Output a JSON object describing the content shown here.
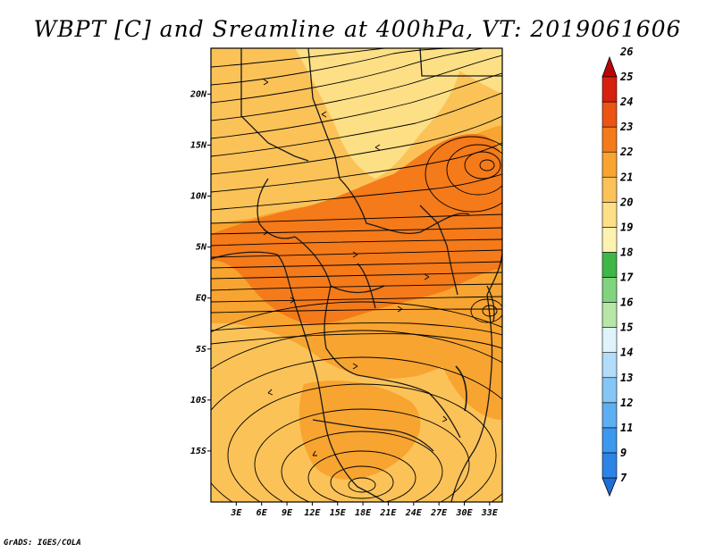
{
  "title": "WBPT [C] and Sreamline at 400hPa, VT: 2019061606",
  "credit": "GrADS: IGES/COLA",
  "map": {
    "lat_labels": [
      "20N",
      "15N",
      "10N",
      "5N",
      "EQ",
      "5S",
      "10S",
      "15S"
    ],
    "lon_labels": [
      "3E",
      "6E",
      "9E",
      "12E",
      "15E",
      "18E",
      "21E",
      "24E",
      "27E",
      "30E",
      "33E"
    ],
    "lat_range": [
      -20,
      24.5
    ],
    "lon_range": [
      0,
      34.5
    ]
  },
  "colorbar": {
    "labels": [
      "7",
      "9",
      "11",
      "12",
      "13",
      "14",
      "15",
      "16",
      "17",
      "18",
      "19",
      "20",
      "21",
      "22",
      "23",
      "24",
      "25",
      "26"
    ],
    "colors": [
      "#1e6ed6",
      "#2d84e8",
      "#3b98ee",
      "#5eaef2",
      "#86c6f6",
      "#b2dcfa",
      "#dff3fb",
      "#b7e6a6",
      "#80d47d",
      "#3fb748",
      "#fef2b0",
      "#fddf85",
      "#fbc258",
      "#f8a430",
      "#f47a1a",
      "#ec5414",
      "#d8200e",
      "#b80608"
    ]
  }
}
